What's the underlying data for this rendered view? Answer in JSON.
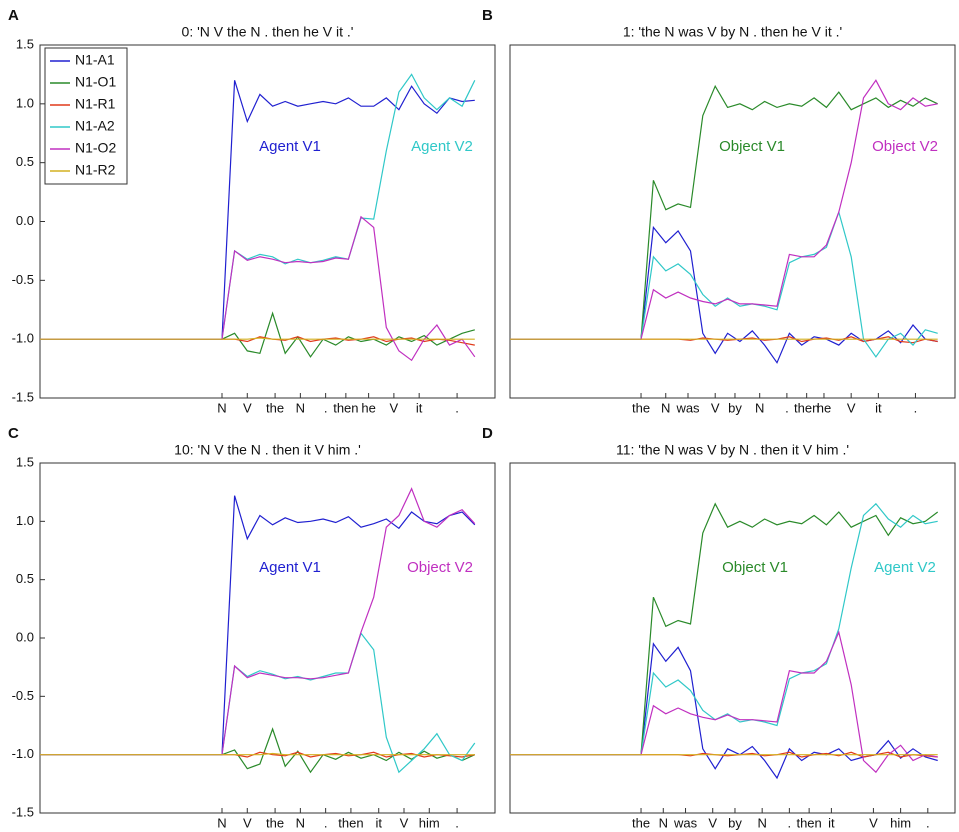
{
  "chart_data": [
    {
      "type": "line",
      "panel": "A",
      "title": "0: 'N V the N . then he V it .'",
      "legend": "upper left",
      "x": [
        0,
        7.2,
        7.7,
        8.2,
        8.7,
        9.2,
        9.7,
        10.2,
        10.7,
        11.2,
        11.7,
        12.2,
        12.7,
        13.2,
        13.7,
        14.2,
        14.7,
        15.2,
        15.7,
        16.2,
        16.7,
        17.2
      ],
      "xlim": [
        0,
        18
      ],
      "ylim": [
        -1.5,
        1.5
      ],
      "xticks": [
        {
          "value": 7.2,
          "label": "N"
        },
        {
          "value": 8.2,
          "label": "V"
        },
        {
          "value": 9.3,
          "label": "the"
        },
        {
          "value": 10.3,
          "label": "N"
        },
        {
          "value": 11.3,
          "label": "."
        },
        {
          "value": 12.1,
          "label": "then"
        },
        {
          "value": 13.0,
          "label": "he"
        },
        {
          "value": 14.0,
          "label": "V"
        },
        {
          "value": 15.0,
          "label": "it"
        },
        {
          "value": 16.5,
          "label": "."
        }
      ],
      "yticks": [
        -1.5,
        {
          "value": -1,
          "label": "-1.0"
        },
        -0.5,
        {
          "value": 0,
          "label": "0.0"
        },
        0.5,
        {
          "value": 1,
          "label": "1.0"
        },
        1.5
      ],
      "annotations": [
        {
          "text": "Agent V1",
          "color": "#2020d0"
        },
        {
          "text": "Agent V2",
          "color": "#30c8c8"
        }
      ],
      "series": [
        {
          "name": "N1-A1",
          "color": "#2020d0",
          "values": [
            -1,
            -1,
            1.2,
            0.85,
            1.08,
            0.98,
            1.02,
            0.98,
            1.0,
            1.02,
            1.0,
            1.05,
            0.98,
            0.98,
            1.05,
            0.95,
            1.15,
            1.0,
            0.92,
            1.05,
            1.02,
            1.03
          ]
        },
        {
          "name": "N1-O1",
          "color": "#2a8a2a",
          "values": [
            -1,
            -1,
            -0.95,
            -1.1,
            -1.12,
            -0.78,
            -1.12,
            -0.98,
            -1.15,
            -1.0,
            -1.05,
            -0.98,
            -1.02,
            -1.0,
            -1.05,
            -0.98,
            -1.02,
            -0.97,
            -1.05,
            -1.0,
            -0.95,
            -0.92
          ]
        },
        {
          "name": "N1-R1",
          "color": "#e03a1a",
          "values": [
            -1,
            -1,
            -1.0,
            -1.02,
            -0.98,
            -1.0,
            -1.01,
            -0.98,
            -1.02,
            -1.0,
            -0.99,
            -1.01,
            -1.0,
            -0.98,
            -1.02,
            -1.0,
            -0.99,
            -1.02,
            -1.0,
            -1.01,
            -1.03,
            -1.05
          ]
        },
        {
          "name": "N1-A2",
          "color": "#30c8c8",
          "values": [
            -1,
            -1,
            -0.25,
            -0.32,
            -0.28,
            -0.3,
            -0.36,
            -0.32,
            -0.35,
            -0.33,
            -0.3,
            -0.32,
            0.03,
            0.02,
            0.6,
            1.1,
            1.25,
            1.05,
            0.95,
            1.05,
            0.98,
            1.2
          ]
        },
        {
          "name": "N1-O2",
          "color": "#c030c0",
          "values": [
            -1,
            -1,
            -0.25,
            -0.33,
            -0.3,
            -0.32,
            -0.35,
            -0.34,
            -0.35,
            -0.34,
            -0.31,
            -0.32,
            0.04,
            -0.05,
            -0.9,
            -1.1,
            -1.18,
            -1.0,
            -0.88,
            -1.05,
            -1.0,
            -1.15
          ]
        },
        {
          "name": "N1-R2",
          "color": "#d4b020",
          "values": [
            -1,
            -1,
            -1,
            -1,
            -0.99,
            -1,
            -1,
            -1,
            -1,
            -1,
            -1,
            -1,
            -1,
            -1,
            -1,
            -1,
            -1,
            -1,
            -1,
            -1,
            -1,
            -1
          ]
        }
      ]
    },
    {
      "type": "line",
      "panel": "B",
      "title": "1: 'the N was V by N . then he V it .'",
      "x": [
        0,
        5.3,
        5.8,
        6.3,
        6.8,
        7.3,
        7.8,
        8.3,
        8.8,
        9.3,
        9.8,
        10.3,
        10.8,
        11.3,
        11.8,
        12.3,
        12.8,
        13.3,
        13.8,
        14.3,
        14.8,
        15.3,
        15.8,
        16.3,
        16.8,
        17.3
      ],
      "xlim": [
        0,
        18
      ],
      "ylim": [
        -1.5,
        1.5
      ],
      "xticks": [
        {
          "value": 5.3,
          "label": "the"
        },
        {
          "value": 6.3,
          "label": "N"
        },
        {
          "value": 7.2,
          "label": "was"
        },
        {
          "value": 8.3,
          "label": "V"
        },
        {
          "value": 9.1,
          "label": "by"
        },
        {
          "value": 10.1,
          "label": "N"
        },
        {
          "value": 11.2,
          "label": "."
        },
        {
          "value": 12.0,
          "label": "then"
        },
        {
          "value": 12.7,
          "label": "he"
        },
        {
          "value": 13.8,
          "label": "V"
        },
        {
          "value": 14.9,
          "label": "it"
        },
        {
          "value": 16.4,
          "label": "."
        }
      ],
      "annotations": [
        {
          "text": "Object V1",
          "color": "#2a8a2a"
        },
        {
          "text": "Object V2",
          "color": "#c030c0"
        }
      ],
      "series": [
        {
          "name": "N1-A1",
          "color": "#2020d0",
          "values": [
            -1,
            -1,
            -0.05,
            -0.18,
            -0.08,
            -0.25,
            -0.95,
            -1.12,
            -0.95,
            -1.02,
            -0.93,
            -1.05,
            -1.2,
            -0.95,
            -1.05,
            -0.98,
            -1.0,
            -1.05,
            -0.95,
            -1.02,
            -1.0,
            -0.93,
            -1.03,
            -0.88,
            -1.0,
            -1.02
          ]
        },
        {
          "name": "N1-O1",
          "color": "#2a8a2a",
          "values": [
            -1,
            -1,
            0.35,
            0.1,
            0.15,
            0.12,
            0.9,
            1.15,
            0.97,
            1.0,
            0.95,
            1.02,
            0.97,
            1.0,
            0.98,
            1.05,
            0.97,
            1.1,
            0.95,
            1.0,
            1.05,
            0.97,
            1.03,
            0.98,
            1.05,
            1.0
          ]
        },
        {
          "name": "N1-R1",
          "color": "#e03a1a",
          "values": [
            -1,
            -1,
            -1,
            -1,
            -1,
            -1.01,
            -0.99,
            -1.0,
            -1.01,
            -1.0,
            -0.99,
            -1.01,
            -1.0,
            -0.98,
            -1.02,
            -1.0,
            -0.99,
            -1.01,
            -0.98,
            -1.02,
            -1.0,
            -0.98,
            -1.02,
            -1.03,
            -1.0,
            -1.02
          ]
        },
        {
          "name": "N1-A2",
          "color": "#30c8c8",
          "values": [
            -1,
            -1,
            -0.3,
            -0.42,
            -0.36,
            -0.45,
            -0.62,
            -0.72,
            -0.65,
            -0.72,
            -0.7,
            -0.72,
            -0.75,
            -0.35,
            -0.3,
            -0.28,
            -0.22,
            0.08,
            -0.3,
            -1.0,
            -1.15,
            -1.0,
            -0.95,
            -1.05,
            -0.92,
            -0.95
          ]
        },
        {
          "name": "N1-O2",
          "color": "#c030c0",
          "values": [
            -1,
            -1,
            -0.58,
            -0.65,
            -0.6,
            -0.65,
            -0.68,
            -0.7,
            -0.66,
            -0.7,
            -0.7,
            -0.71,
            -0.72,
            -0.28,
            -0.3,
            -0.3,
            -0.2,
            0.08,
            0.5,
            1.05,
            1.2,
            1.0,
            0.95,
            1.05,
            0.98,
            1.0
          ]
        },
        {
          "name": "N1-R2",
          "color": "#d4b020",
          "values": [
            -1,
            -1,
            -1,
            -1,
            -1,
            -1,
            -1,
            -1,
            -1,
            -1,
            -1,
            -1,
            -1,
            -1,
            -1,
            -1,
            -1,
            -1,
            -1,
            -1,
            -1,
            -1,
            -1,
            -1,
            -1,
            -1
          ]
        }
      ]
    },
    {
      "type": "line",
      "panel": "C",
      "title": "10: 'N V the N . then it V him .'",
      "x": [
        0,
        7.2,
        7.7,
        8.2,
        8.7,
        9.2,
        9.7,
        10.2,
        10.7,
        11.2,
        11.7,
        12.2,
        12.7,
        13.2,
        13.7,
        14.2,
        14.7,
        15.2,
        15.7,
        16.2,
        16.7,
        17.2
      ],
      "xlim": [
        0,
        18
      ],
      "ylim": [
        -1.5,
        1.5
      ],
      "xticks": [
        {
          "value": 7.2,
          "label": "N"
        },
        {
          "value": 8.2,
          "label": "V"
        },
        {
          "value": 9.3,
          "label": "the"
        },
        {
          "value": 10.3,
          "label": "N"
        },
        {
          "value": 11.3,
          "label": "."
        },
        {
          "value": 12.3,
          "label": "then"
        },
        {
          "value": 13.4,
          "label": "it"
        },
        {
          "value": 14.4,
          "label": "V"
        },
        {
          "value": 15.4,
          "label": "him"
        },
        {
          "value": 16.5,
          "label": "."
        }
      ],
      "yticks": [
        -1.5,
        {
          "value": -1,
          "label": "-1.0"
        },
        -0.5,
        {
          "value": 0,
          "label": "0.0"
        },
        0.5,
        {
          "value": 1,
          "label": "1.0"
        },
        1.5
      ],
      "annotations": [
        {
          "text": "Agent V1",
          "color": "#2020d0"
        },
        {
          "text": "Object V2",
          "color": "#c030c0"
        }
      ],
      "series": [
        {
          "name": "N1-A1",
          "color": "#2020d0",
          "values": [
            -1,
            -1,
            1.22,
            0.85,
            1.05,
            0.97,
            1.03,
            0.99,
            1.0,
            1.02,
            0.99,
            1.04,
            0.95,
            0.98,
            1.02,
            0.94,
            1.08,
            1.0,
            0.98,
            1.05,
            1.08,
            0.97
          ]
        },
        {
          "name": "N1-O1",
          "color": "#2a8a2a",
          "values": [
            -1,
            -1,
            -0.96,
            -1.12,
            -1.08,
            -0.78,
            -1.1,
            -0.97,
            -1.15,
            -1.0,
            -1.04,
            -0.98,
            -1.03,
            -1.0,
            -1.05,
            -0.98,
            -1.04,
            -0.97,
            -1.03,
            -1.0,
            -1.05,
            -1.0
          ]
        },
        {
          "name": "N1-R1",
          "color": "#e03a1a",
          "values": [
            -1,
            -1,
            -1.0,
            -1.02,
            -0.98,
            -1.0,
            -1.01,
            -0.98,
            -1.02,
            -1.0,
            -0.99,
            -1.01,
            -1.0,
            -0.98,
            -1.02,
            -1.0,
            -0.99,
            -1.02,
            -1.0,
            -1.01,
            -1.02,
            -1.0
          ]
        },
        {
          "name": "N1-A2",
          "color": "#30c8c8",
          "values": [
            -1,
            -1,
            -0.24,
            -0.33,
            -0.28,
            -0.31,
            -0.35,
            -0.33,
            -0.36,
            -0.33,
            -0.3,
            -0.3,
            0.04,
            -0.1,
            -0.85,
            -1.15,
            -1.05,
            -0.95,
            -0.82,
            -1.0,
            -1.05,
            -0.9
          ]
        },
        {
          "name": "N1-O2",
          "color": "#c030c0",
          "values": [
            -1,
            -1,
            -0.24,
            -0.34,
            -0.3,
            -0.32,
            -0.34,
            -0.34,
            -0.35,
            -0.34,
            -0.32,
            -0.3,
            0.05,
            0.35,
            0.95,
            1.05,
            1.28,
            1.0,
            0.95,
            1.05,
            1.1,
            0.98
          ]
        },
        {
          "name": "N1-R2",
          "color": "#d4b020",
          "values": [
            -1,
            -1,
            -1,
            -1,
            -1,
            -0.99,
            -1,
            -1,
            -1,
            -1,
            -1,
            -1,
            -1,
            -1,
            -1,
            -1,
            -1,
            -1,
            -1,
            -1,
            -1,
            -1
          ]
        }
      ]
    },
    {
      "type": "line",
      "panel": "D",
      "title": "11: 'the N was V by N . then it V him .'",
      "x": [
        0,
        5.3,
        5.8,
        6.3,
        6.8,
        7.3,
        7.8,
        8.3,
        8.8,
        9.3,
        9.8,
        10.3,
        10.8,
        11.3,
        11.8,
        12.3,
        12.8,
        13.3,
        13.8,
        14.3,
        14.8,
        15.3,
        15.8,
        16.3,
        16.8,
        17.3
      ],
      "xlim": [
        0,
        18
      ],
      "ylim": [
        -1.5,
        1.5
      ],
      "xticks": [
        {
          "value": 5.3,
          "label": "the"
        },
        {
          "value": 6.2,
          "label": "N"
        },
        {
          "value": 7.1,
          "label": "was"
        },
        {
          "value": 8.2,
          "label": "V"
        },
        {
          "value": 9.1,
          "label": "by"
        },
        {
          "value": 10.2,
          "label": "N"
        },
        {
          "value": 11.3,
          "label": "."
        },
        {
          "value": 12.1,
          "label": "then"
        },
        {
          "value": 13.0,
          "label": "it"
        },
        {
          "value": 14.7,
          "label": "V"
        },
        {
          "value": 15.8,
          "label": "him"
        },
        {
          "value": 16.9,
          "label": "."
        }
      ],
      "annotations": [
        {
          "text": "Object V1",
          "color": "#2a8a2a"
        },
        {
          "text": "Agent V2",
          "color": "#30c8c8"
        }
      ],
      "series": [
        {
          "name": "N1-A1",
          "color": "#2020d0",
          "values": [
            -1,
            -1,
            -0.05,
            -0.2,
            -0.08,
            -0.28,
            -0.95,
            -1.12,
            -0.95,
            -1.0,
            -0.93,
            -1.05,
            -1.2,
            -0.95,
            -1.05,
            -0.98,
            -1.0,
            -0.95,
            -1.05,
            -1.02,
            -1.0,
            -0.88,
            -1.03,
            -0.95,
            -1.02,
            -1.05
          ]
        },
        {
          "name": "N1-O1",
          "color": "#2a8a2a",
          "values": [
            -1,
            -1,
            0.35,
            0.1,
            0.15,
            0.12,
            0.9,
            1.15,
            0.95,
            1.0,
            0.95,
            1.02,
            0.97,
            1.0,
            0.98,
            1.05,
            0.97,
            1.08,
            0.95,
            1.0,
            1.05,
            0.88,
            1.03,
            0.98,
            1.0,
            1.08
          ]
        },
        {
          "name": "N1-R1",
          "color": "#e03a1a",
          "values": [
            -1,
            -1,
            -1,
            -1,
            -1,
            -1.01,
            -0.99,
            -1.0,
            -1.01,
            -1.0,
            -0.99,
            -1.01,
            -1.0,
            -0.98,
            -1.02,
            -1.0,
            -0.99,
            -1.01,
            -0.98,
            -1.02,
            -1.0,
            -0.98,
            -1.02,
            -1.0,
            -1.01,
            -1.02
          ]
        },
        {
          "name": "N1-A2",
          "color": "#30c8c8",
          "values": [
            -1,
            -1,
            -0.3,
            -0.42,
            -0.36,
            -0.45,
            -0.62,
            -0.7,
            -0.65,
            -0.72,
            -0.7,
            -0.72,
            -0.75,
            -0.35,
            -0.3,
            -0.28,
            -0.22,
            0.08,
            0.6,
            1.05,
            1.15,
            1.02,
            0.95,
            1.05,
            0.98,
            1.0
          ]
        },
        {
          "name": "N1-O2",
          "color": "#c030c0",
          "values": [
            -1,
            -1,
            -0.58,
            -0.65,
            -0.6,
            -0.65,
            -0.68,
            -0.7,
            -0.66,
            -0.7,
            -0.7,
            -0.71,
            -0.72,
            -0.28,
            -0.3,
            -0.3,
            -0.2,
            0.05,
            -0.4,
            -1.05,
            -1.15,
            -1.0,
            -0.92,
            -1.05,
            -1.0,
            -1.02
          ]
        },
        {
          "name": "N1-R2",
          "color": "#d4b020",
          "values": [
            -1,
            -1,
            -1,
            -1,
            -1,
            -1,
            -1,
            -1,
            -1,
            -1,
            -1,
            -1,
            -1,
            -1,
            -1,
            -1,
            -1,
            -1,
            -1,
            -1,
            -1,
            -1,
            -1,
            -1,
            -1,
            -1
          ]
        }
      ]
    }
  ]
}
